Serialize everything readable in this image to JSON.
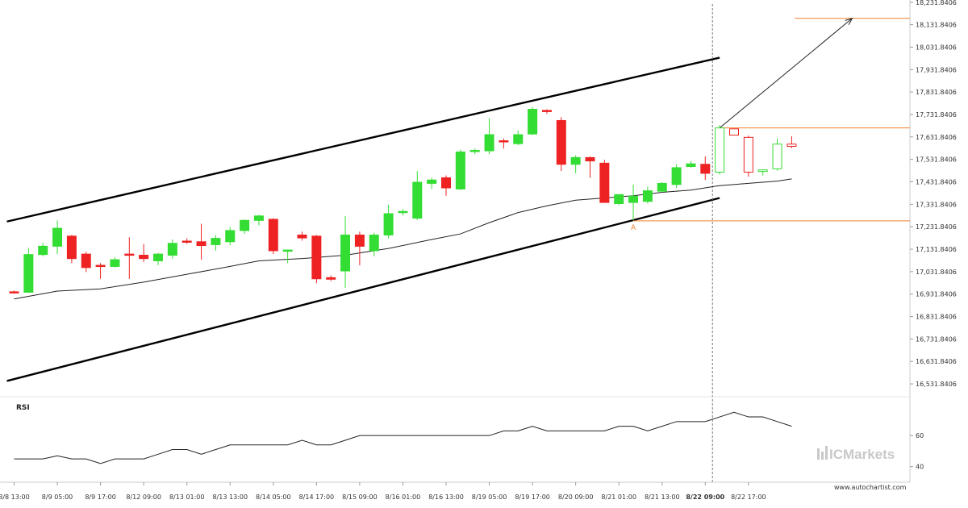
{
  "chart_data": {
    "type": "candlestick",
    "price_axis": {
      "ticks": [
        "18,231.8406",
        "18,131.8406",
        "18,031.8406",
        "17,931.8406",
        "17,831.8406",
        "17,731.8406",
        "17,631.8406",
        "17,531.8406",
        "17,431.8406",
        "17,331.8406",
        "17,231.8406",
        "17,131.8406",
        "17,031.8406",
        "16,931.8406",
        "16,831.8406",
        "16,731.8406",
        "16,631.8406",
        "16,531.8406"
      ],
      "range": [
        16481.84,
        18241.84
      ]
    },
    "time_axis": {
      "ticks": [
        {
          "i": 0,
          "label": "8/8 13:00"
        },
        {
          "i": 3,
          "label": "8/9 05:00"
        },
        {
          "i": 6,
          "label": "8/9 17:00"
        },
        {
          "i": 9,
          "label": "8/12 09:00"
        },
        {
          "i": 12,
          "label": "8/13 01:00"
        },
        {
          "i": 15,
          "label": "8/13 13:00"
        },
        {
          "i": 18,
          "label": "8/14 05:00"
        },
        {
          "i": 21,
          "label": "8/14 17:00"
        },
        {
          "i": 24,
          "label": "8/15 09:00"
        },
        {
          "i": 27,
          "label": "8/16 01:00"
        },
        {
          "i": 30,
          "label": "8/16 13:00"
        },
        {
          "i": 33,
          "label": "8/19 05:00"
        },
        {
          "i": 36,
          "label": "8/19 17:00"
        },
        {
          "i": 39,
          "label": "8/20 09:00"
        },
        {
          "i": 42,
          "label": "8/21 01:00"
        },
        {
          "i": 45,
          "label": "8/21 13:00"
        },
        {
          "i": 48,
          "label": "8/22 09:00",
          "bold": true
        },
        {
          "i": 51,
          "label": "8/22 17:00"
        }
      ]
    },
    "candles": [
      {
        "o": 16942,
        "h": 16948,
        "l": 16934,
        "c": 16940
      },
      {
        "o": 16940,
        "h": 17138,
        "l": 16938,
        "c": 17108
      },
      {
        "o": 17108,
        "h": 17160,
        "l": 17100,
        "c": 17145
      },
      {
        "o": 17145,
        "h": 17260,
        "l": 17110,
        "c": 17225
      },
      {
        "o": 17190,
        "h": 17195,
        "l": 17070,
        "c": 17090
      },
      {
        "o": 17110,
        "h": 17120,
        "l": 17030,
        "c": 17050
      },
      {
        "o": 17060,
        "h": 17070,
        "l": 17000,
        "c": 17058
      },
      {
        "o": 17055,
        "h": 17095,
        "l": 17050,
        "c": 17085
      },
      {
        "o": 17110,
        "h": 17185,
        "l": 17000,
        "c": 17105
      },
      {
        "o": 17105,
        "h": 17155,
        "l": 17075,
        "c": 17090
      },
      {
        "o": 17080,
        "h": 17115,
        "l": 17060,
        "c": 17110
      },
      {
        "o": 17105,
        "h": 17175,
        "l": 17090,
        "c": 17158
      },
      {
        "o": 17168,
        "h": 17180,
        "l": 17155,
        "c": 17165
      },
      {
        "o": 17165,
        "h": 17245,
        "l": 17085,
        "c": 17148
      },
      {
        "o": 17152,
        "h": 17195,
        "l": 17125,
        "c": 17180
      },
      {
        "o": 17165,
        "h": 17230,
        "l": 17150,
        "c": 17215
      },
      {
        "o": 17215,
        "h": 17265,
        "l": 17200,
        "c": 17260
      },
      {
        "o": 17260,
        "h": 17285,
        "l": 17238,
        "c": 17280
      },
      {
        "o": 17265,
        "h": 17270,
        "l": 17110,
        "c": 17125
      },
      {
        "o": 17128,
        "h": 17130,
        "l": 17070,
        "c": 17128
      },
      {
        "o": 17195,
        "h": 17210,
        "l": 17170,
        "c": 17182
      },
      {
        "o": 17190,
        "h": 17195,
        "l": 16980,
        "c": 17000
      },
      {
        "o": 17005,
        "h": 17015,
        "l": 16990,
        "c": 16998
      },
      {
        "o": 17035,
        "h": 17280,
        "l": 16960,
        "c": 17195
      },
      {
        "o": 17195,
        "h": 17210,
        "l": 17060,
        "c": 17145
      },
      {
        "o": 17125,
        "h": 17205,
        "l": 17100,
        "c": 17195
      },
      {
        "o": 17195,
        "h": 17330,
        "l": 17180,
        "c": 17290
      },
      {
        "o": 17295,
        "h": 17310,
        "l": 17282,
        "c": 17300
      },
      {
        "o": 17270,
        "h": 17480,
        "l": 17262,
        "c": 17430
      },
      {
        "o": 17425,
        "h": 17450,
        "l": 17400,
        "c": 17440
      },
      {
        "o": 17450,
        "h": 17460,
        "l": 17370,
        "c": 17405
      },
      {
        "o": 17400,
        "h": 17575,
        "l": 17395,
        "c": 17565
      },
      {
        "o": 17568,
        "h": 17580,
        "l": 17555,
        "c": 17572
      },
      {
        "o": 17570,
        "h": 17715,
        "l": 17555,
        "c": 17642
      },
      {
        "o": 17615,
        "h": 17625,
        "l": 17580,
        "c": 17610
      },
      {
        "o": 17602,
        "h": 17660,
        "l": 17595,
        "c": 17642
      },
      {
        "o": 17645,
        "h": 17765,
        "l": 17640,
        "c": 17755
      },
      {
        "o": 17750,
        "h": 17755,
        "l": 17735,
        "c": 17748
      },
      {
        "o": 17705,
        "h": 17720,
        "l": 17480,
        "c": 17510
      },
      {
        "o": 17510,
        "h": 17550,
        "l": 17470,
        "c": 17540
      },
      {
        "o": 17540,
        "h": 17545,
        "l": 17450,
        "c": 17525
      },
      {
        "o": 17515,
        "h": 17530,
        "l": 17340,
        "c": 17340
      },
      {
        "o": 17335,
        "h": 17375,
        "l": 17328,
        "c": 17375
      },
      {
        "o": 17340,
        "h": 17420,
        "l": 17260,
        "c": 17368
      },
      {
        "o": 17345,
        "h": 17410,
        "l": 17335,
        "c": 17392
      },
      {
        "o": 17390,
        "h": 17430,
        "l": 17385,
        "c": 17425
      },
      {
        "o": 17420,
        "h": 17510,
        "l": 17405,
        "c": 17495
      },
      {
        "o": 17500,
        "h": 17525,
        "l": 17495,
        "c": 17512
      },
      {
        "o": 17510,
        "h": 17545,
        "l": 17440,
        "c": 17470
      },
      {
        "o": 17475,
        "h": 17685,
        "l": 17465,
        "c": 17672
      },
      {
        "o": 17668,
        "h": 17668,
        "l": 17640,
        "c": 17640
      },
      {
        "o": 17630,
        "h": 17638,
        "l": 17455,
        "c": 17475
      },
      {
        "o": 17478,
        "h": 17488,
        "l": 17460,
        "c": 17485
      },
      {
        "o": 17490,
        "h": 17625,
        "l": 17482,
        "c": 17600
      },
      {
        "o": 17600,
        "h": 17635,
        "l": 17582,
        "c": 17590
      }
    ],
    "hollow_from_index": 49,
    "moving_average": [
      {
        "i": 0,
        "v": 16910
      },
      {
        "i": 3,
        "v": 16945
      },
      {
        "i": 6,
        "v": 16955
      },
      {
        "i": 9,
        "v": 16985
      },
      {
        "i": 12,
        "v": 17020
      },
      {
        "i": 15,
        "v": 17055
      },
      {
        "i": 17,
        "v": 17080
      },
      {
        "i": 20,
        "v": 17090
      },
      {
        "i": 23,
        "v": 17105
      },
      {
        "i": 26,
        "v": 17135
      },
      {
        "i": 29,
        "v": 17175
      },
      {
        "i": 31,
        "v": 17200
      },
      {
        "i": 33,
        "v": 17250
      },
      {
        "i": 35,
        "v": 17295
      },
      {
        "i": 37,
        "v": 17325
      },
      {
        "i": 39,
        "v": 17350
      },
      {
        "i": 41,
        "v": 17360
      },
      {
        "i": 43,
        "v": 17370
      },
      {
        "i": 45,
        "v": 17385
      },
      {
        "i": 47,
        "v": 17395
      },
      {
        "i": 49,
        "v": 17415
      },
      {
        "i": 51,
        "v": 17425
      },
      {
        "i": 53,
        "v": 17435
      },
      {
        "i": 54,
        "v": 17445
      }
    ],
    "channel_upper": [
      {
        "i": -0.5,
        "v": 17255
      },
      {
        "i": 49,
        "v": 17985
      }
    ],
    "channel_lower": [
      {
        "i": -0.5,
        "v": 16545
      },
      {
        "i": 49,
        "v": 17360
      }
    ],
    "resistance_level": 17672,
    "support_level": 17258,
    "target_level": 18160,
    "projection_arrow": {
      "from": {
        "i": 49,
        "v": 17672
      },
      "to": {
        "i": 58.2,
        "v": 18160
      }
    },
    "support_marker_label": "A",
    "support_marker_index": 43,
    "current_bar_index": 48.5,
    "rsi": {
      "title": "RSI",
      "ticks": [
        "60",
        "40"
      ],
      "range": [
        30,
        85
      ],
      "values": [
        45,
        45,
        45,
        47,
        45,
        45,
        42,
        45,
        45,
        45,
        48,
        51,
        51,
        48,
        51,
        54,
        54,
        54,
        54,
        54,
        57,
        54,
        54,
        57,
        60,
        60,
        60,
        60,
        60,
        60,
        60,
        60,
        60,
        60,
        63,
        63,
        66,
        63,
        63,
        63,
        63,
        63,
        66,
        66,
        63,
        66,
        69,
        69,
        69,
        72,
        75,
        72,
        72,
        69,
        66
      ]
    },
    "colors": {
      "up": "#33dd33",
      "down": "#ee2222",
      "level": "#f08030",
      "channel": "#000000"
    }
  },
  "footer": {
    "brand": "ICMarkets",
    "site": "www.autochartist.com"
  }
}
